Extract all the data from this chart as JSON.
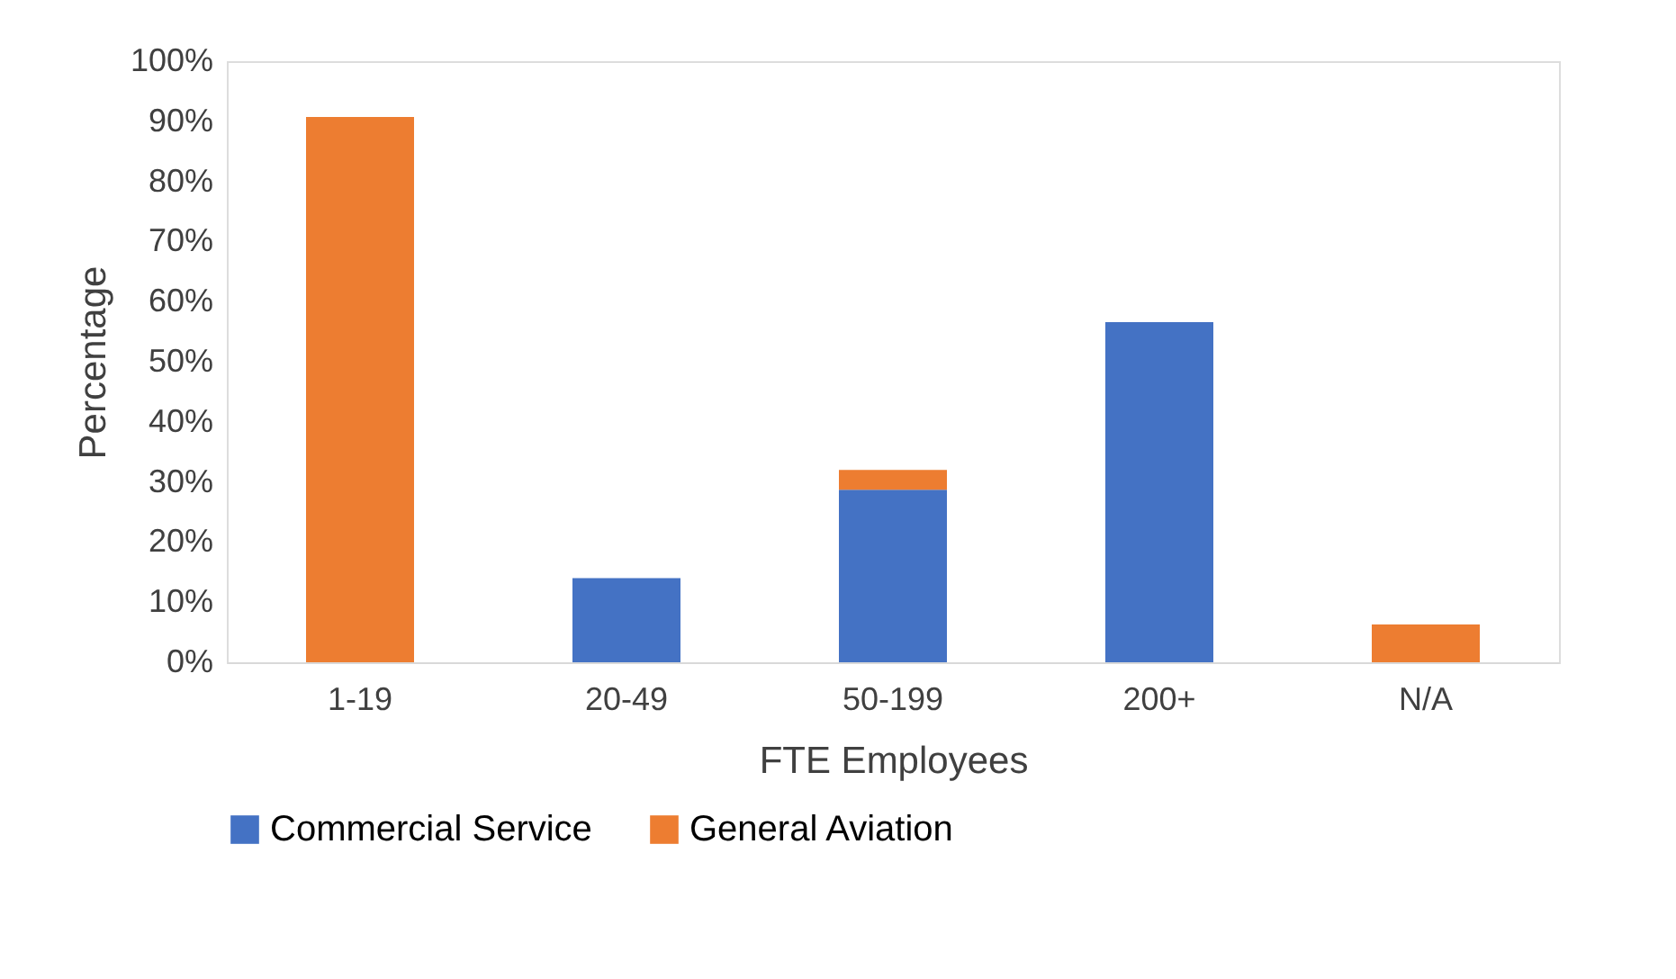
{
  "chart_data": {
    "type": "bar",
    "stacked": true,
    "xlabel": "FTE Employees",
    "ylabel": "Percentage",
    "categories": [
      "1-19",
      "20-49",
      "50-199",
      "200+",
      "N/A"
    ],
    "series": [
      {
        "name": "Commercial Service",
        "color": "#4472c4",
        "values": [
          null,
          14,
          28.7,
          56.6,
          null
        ]
      },
      {
        "name": "General Aviation",
        "color": "#ed7d31",
        "values": [
          90.7,
          null,
          3.3,
          null,
          6.3
        ]
      }
    ],
    "ylim": [
      0,
      100
    ],
    "yticks": [
      {
        "value": 0,
        "label": "0%"
      },
      {
        "value": 10,
        "label": "10%"
      },
      {
        "value": 20,
        "label": "20%"
      },
      {
        "value": 30,
        "label": "30%"
      },
      {
        "value": 40,
        "label": "40%"
      },
      {
        "value": 50,
        "label": "50%"
      },
      {
        "value": 60,
        "label": "60%"
      },
      {
        "value": 70,
        "label": "70%"
      },
      {
        "value": 80,
        "label": "80%"
      },
      {
        "value": 90,
        "label": "90%"
      },
      {
        "value": 100,
        "label": "100%"
      }
    ],
    "grid": false,
    "legend": "bottom"
  }
}
